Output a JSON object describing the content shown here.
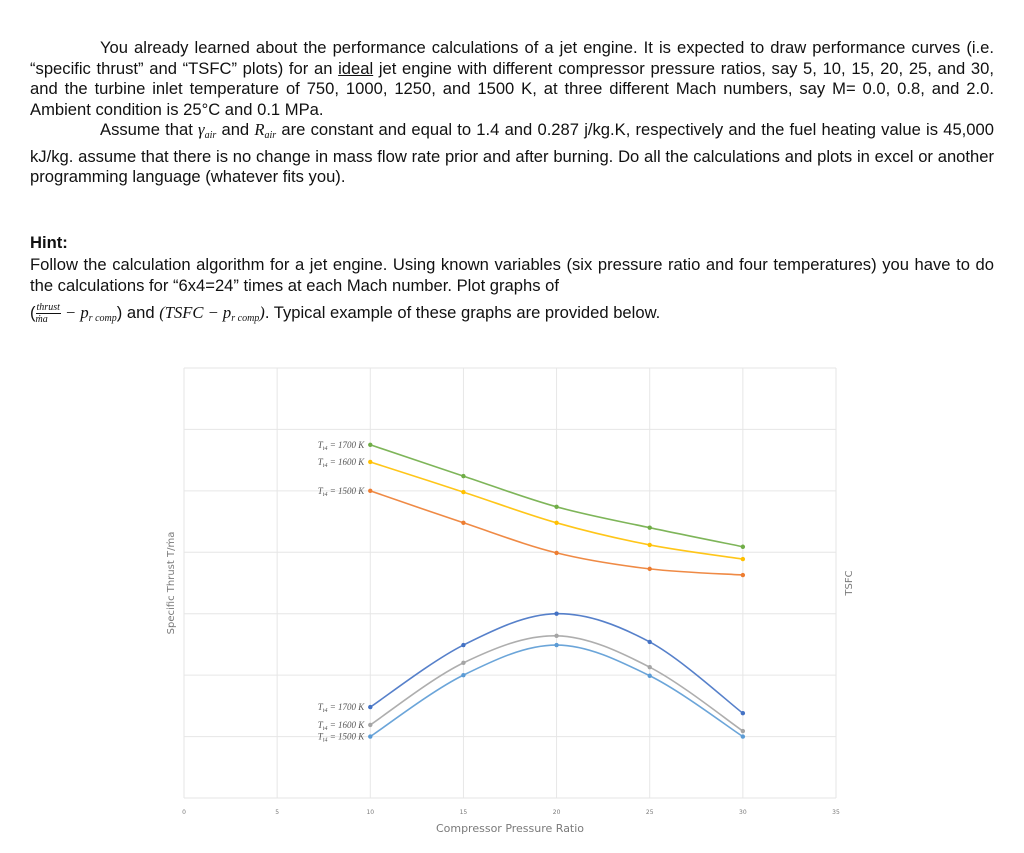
{
  "document": {
    "paragraph1": {
      "line_part1": "You already learned about the performance calculations of a jet engine. It is expected to draw performance curves (i.e. “specific thrust” and “TSFC” plots) for an ",
      "underlined_word": "ideal",
      "line_part2": " jet engine with different compressor pressure ratios, say 5, 10, 15, 20, 25, and 30, and the turbine inlet temperature of 750, 1000, 1250, and 1500 K, at three different Mach numbers, say M= 0.0, 0.8, and 2.0. Ambient condition is 25°C and 0.1 MPa."
    },
    "paragraph2": {
      "part1": "Assume that ",
      "gamma": "γ",
      "gamma_sub": "air",
      "part2": " and ",
      "R": "R",
      "R_sub": "air",
      "part3": " are constant and equal to 1.4 and 0.287 j/kg.K, respectively and the fuel heating value is 45,000 kJ/kg.  assume that there is no change in mass flow rate prior and after burning. Do all the calculations and plots in excel or another programming language (whatever fits you)."
    },
    "hint": {
      "title": "Hint:",
      "text": "Follow the calculation algorithm for a jet engine. Using known variables (six pressure ratio and four temperatures) you have to do the calculations for “6x4=24” times at each Mach number. Plot graphs of",
      "formula_open": "(",
      "frac_num": "thrust",
      "frac_den": "ṁa",
      "formula_mid1": " − p",
      "formula_sub1": "r comp",
      "formula_close1": ")",
      "and_text": " and ",
      "formula2_open": "(TSFC − p",
      "formula2_sub": "r comp",
      "formula2_close": ")",
      "tail": ". Typical example of these graphs are provided below."
    }
  },
  "chart_data": {
    "type": "line",
    "title": "",
    "xlabel": "Compressor Pressure Ratio",
    "ylabel_left": "Specific Thrust T/ṁa",
    "ylabel_right": "TSFC",
    "xlim": [
      0,
      35
    ],
    "x_ticks": [
      "0",
      "5",
      "10",
      "15",
      "20",
      "25",
      "30",
      "35"
    ],
    "ylim_normalized": [
      0,
      7
    ],
    "y_ticks_shown": false,
    "grid": true,
    "x": [
      10,
      15,
      20,
      25,
      30
    ],
    "series": [
      {
        "name": "Tt4 = 1700 K",
        "group": "specific_thrust",
        "color": "#70AD47",
        "values": [
          5.75,
          5.24,
          4.74,
          4.4,
          4.09
        ]
      },
      {
        "name": "Tt4 = 1600 K",
        "group": "specific_thrust",
        "color": "#FFC000",
        "values": [
          5.47,
          4.98,
          4.48,
          4.12,
          3.89
        ]
      },
      {
        "name": "Tt4 = 1500 K",
        "group": "specific_thrust",
        "color": "#ED7D31",
        "values": [
          5.0,
          4.48,
          3.99,
          3.73,
          3.63
        ]
      },
      {
        "name": "Tt4 = 1700 K",
        "group": "tsfc",
        "color": "#4472C4",
        "values": [
          1.48,
          2.49,
          3.0,
          2.54,
          1.38
        ]
      },
      {
        "name": "Tt4 = 1600 K",
        "group": "tsfc",
        "color": "#A5A5A5",
        "values": [
          1.19,
          2.2,
          2.64,
          2.13,
          1.09
        ]
      },
      {
        "name": "Tt4 = 1500 K",
        "group": "tsfc",
        "color": "#5B9BD5",
        "values": [
          1.0,
          2.0,
          2.49,
          1.99,
          1.0
        ]
      }
    ],
    "annotations": [
      "Tt4 = 1700 K",
      "Tt4 = 1600 K",
      "Tt4 = 1500 K",
      "Tt4 = 1700 K",
      "Tt4 = 1600 K",
      "Tt4 = 1500 K"
    ]
  }
}
